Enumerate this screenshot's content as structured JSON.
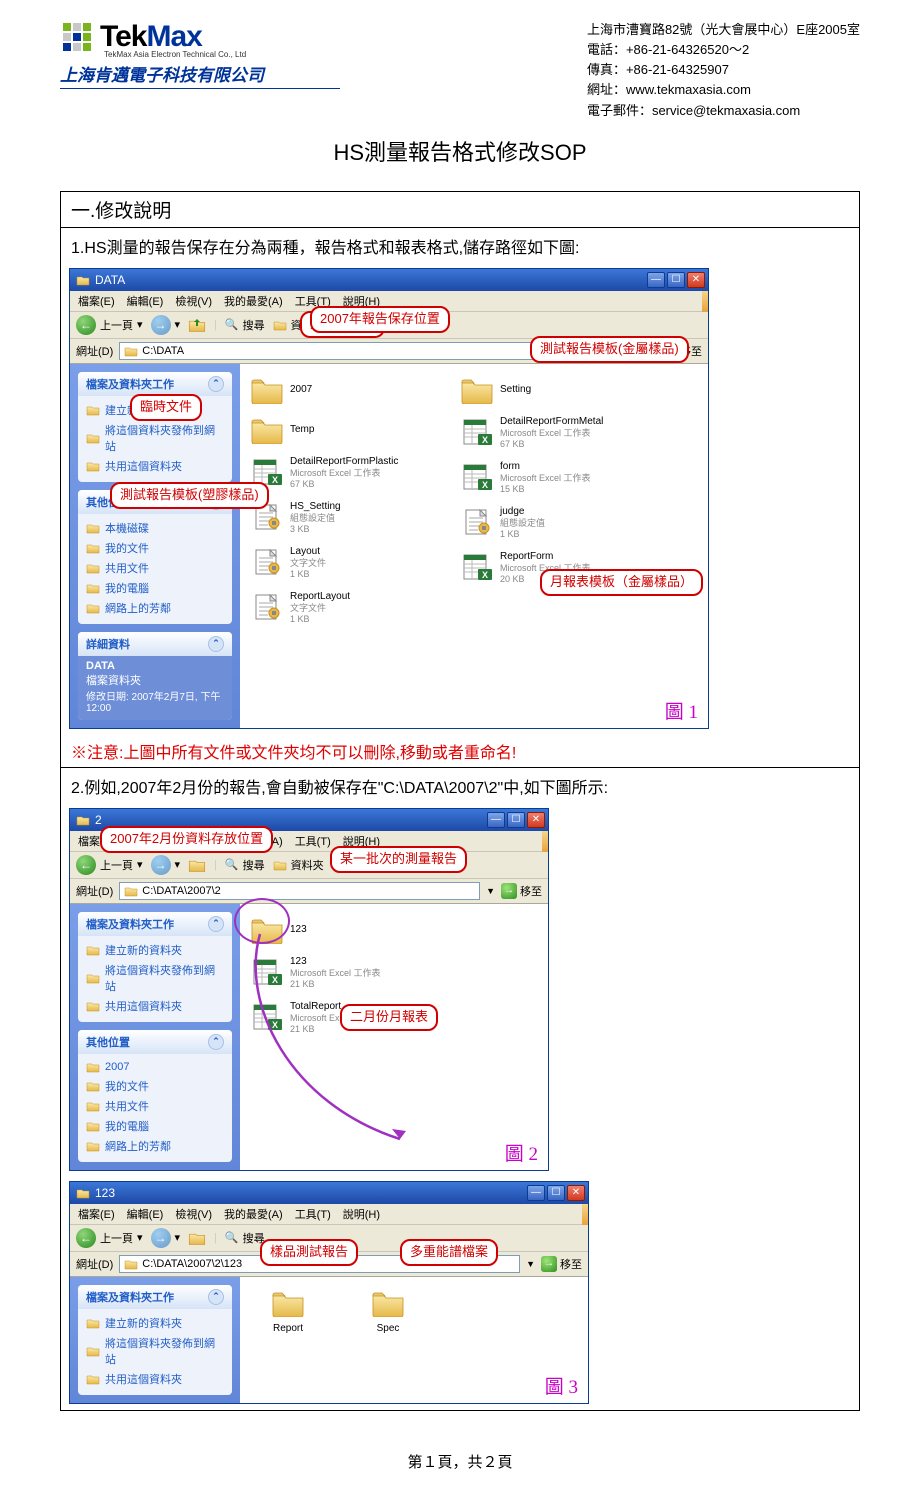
{
  "header": {
    "logo_name": "TekMax",
    "logo_sub": "TekMax Asia Electron Technical Co., Ltd",
    "logo_cn": "上海肯邁電子科技有限公司",
    "logo_colors": [
      "#7ab51d",
      "#c8c8c8",
      "#7ab51d",
      "#c8c8c8",
      "#003399",
      "#7ab51d",
      "#003399",
      "#c8c8c8",
      "#7ab51d"
    ],
    "contact": {
      "addr": "上海市漕寶路82號（光大會展中心）E座2005室",
      "tel": "電話：+86-21-64326520～2",
      "fax": "傳真：+86-21-64325907",
      "web": "網址：www.tekmaxasia.com",
      "email": "電子郵件：service@tekmaxasia.com"
    }
  },
  "doc_title": "HS測量報告格式修改SOP",
  "section1_head": "一.修改說明",
  "para1": "1.HS測量的報告保存在分為兩種，報告格式和報表格式,儲存路徑如下圖:",
  "warn": "※注意:上圖中所有文件或文件夾均不可以刪除,移動或者重命名!",
  "para2": "2.例如,2007年2月份的報告,會自動被保存在\"C:\\DATA\\2007\\2\"中,如下圖所示:",
  "footer": "第１頁，共２頁",
  "menus": {
    "file": "檔案(E)",
    "edit": "編輯(E)",
    "view": "檢視(V)",
    "fav": "我的最愛(A)",
    "tools": "工具(T)",
    "help": "說明(H)"
  },
  "toolbar": {
    "back": "上一頁",
    "search": "搜尋",
    "folders": "資料夾"
  },
  "addrbar": {
    "label": "網址(D)",
    "go": "移至"
  },
  "win1": {
    "title": "DATA",
    "path": "C:\\DATA",
    "side_tasks_head": "檔案及資料夾工作",
    "side_tasks": [
      "建立新的資料夾",
      "將這個資料夾發佈到網站",
      "共用這個資料夾"
    ],
    "side_places_head": "其他位置",
    "side_places": [
      "本機磁碟",
      "我的文件",
      "共用文件",
      "我的電腦",
      "網路上的芳鄰"
    ],
    "side_detail_head": "詳細資料",
    "side_detail_name": "DATA",
    "side_detail_type": "檔案資料夾",
    "side_detail_mod": "修改日期: 2007年2月7日, 下午 12:00",
    "files_left": [
      {
        "name": "2007",
        "type": "folder"
      },
      {
        "name": "Temp",
        "type": "folder"
      },
      {
        "name": "DetailReportFormPlastic",
        "type": "xls",
        "meta": "Microsoft Excel 工作表\n67 KB"
      },
      {
        "name": "HS_Setting",
        "type": "txt",
        "meta": "組態設定值\n3 KB"
      },
      {
        "name": "Layout",
        "type": "txt",
        "meta": "文字文件\n1 KB"
      },
      {
        "name": "ReportLayout",
        "type": "txt",
        "meta": "文字文件\n1 KB"
      }
    ],
    "files_right": [
      {
        "name": "Setting",
        "type": "folder"
      },
      {
        "name": "DetailReportFormMetal",
        "type": "xls",
        "meta": "Microsoft Excel 工作表\n67 KB"
      },
      {
        "name": "form",
        "type": "xls",
        "meta": "Microsoft Excel 工作表\n15 KB"
      },
      {
        "name": "judge",
        "type": "txt",
        "meta": "組態設定值\n1 KB"
      },
      {
        "name": "ReportForm",
        "type": "xls",
        "meta": "Microsoft Excel 工作表\n20 KB"
      }
    ],
    "callouts": {
      "path": "先確認路徑",
      "y2007": "2007年報告保存位置",
      "temp": "臨時文件",
      "metal": "測試報告模板(金屬樣品)",
      "plastic": "測試報告模板(塑膠樣品)",
      "monthly": "月報表模板（金屬樣品）"
    },
    "fig": "圖 1"
  },
  "win2": {
    "title": "2",
    "path": "C:\\DATA\\2007\\2",
    "side_tasks_head": "檔案及資料夾工作",
    "side_tasks": [
      "建立新的資料夾",
      "將這個資料夾發佈到網站",
      "共用這個資料夾"
    ],
    "side_places_head": "其他位置",
    "side_places": [
      "2007",
      "我的文件",
      "共用文件",
      "我的電腦",
      "網路上的芳鄰"
    ],
    "files": [
      {
        "name": "123",
        "type": "folder"
      },
      {
        "name": "123",
        "type": "xls",
        "meta": "Microsoft Excel 工作表\n21 KB"
      },
      {
        "name": "TotalReport",
        "type": "xls",
        "meta": "Microsoft Excel 工作表\n21 KB"
      }
    ],
    "callouts": {
      "loc": "2007年2月份資料存放位置",
      "batch": "某一批次的測量報告",
      "feb": "二月份月報表"
    },
    "fig": "圖 2"
  },
  "win3": {
    "title": "123",
    "path": "C:\\DATA\\2007\\2\\123",
    "side_tasks_head": "檔案及資料夾工作",
    "side_tasks": [
      "建立新的資料夾",
      "將這個資料夾發佈到網站",
      "共用這個資料夾"
    ],
    "files": [
      {
        "name": "Report",
        "type": "folder"
      },
      {
        "name": "Spec",
        "type": "folder"
      }
    ],
    "callouts": {
      "report": "樣品測試報告",
      "spec": "多重能譜檔案"
    },
    "fig": "圖 3"
  },
  "colors": {
    "red": "#d00000",
    "blue": "#003399",
    "magenta": "#c800c8",
    "xp_title_a": "#3b77d8",
    "xp_title_b": "#1e49a6",
    "folder_a": "#f7e39a",
    "folder_b": "#e8b84a"
  }
}
